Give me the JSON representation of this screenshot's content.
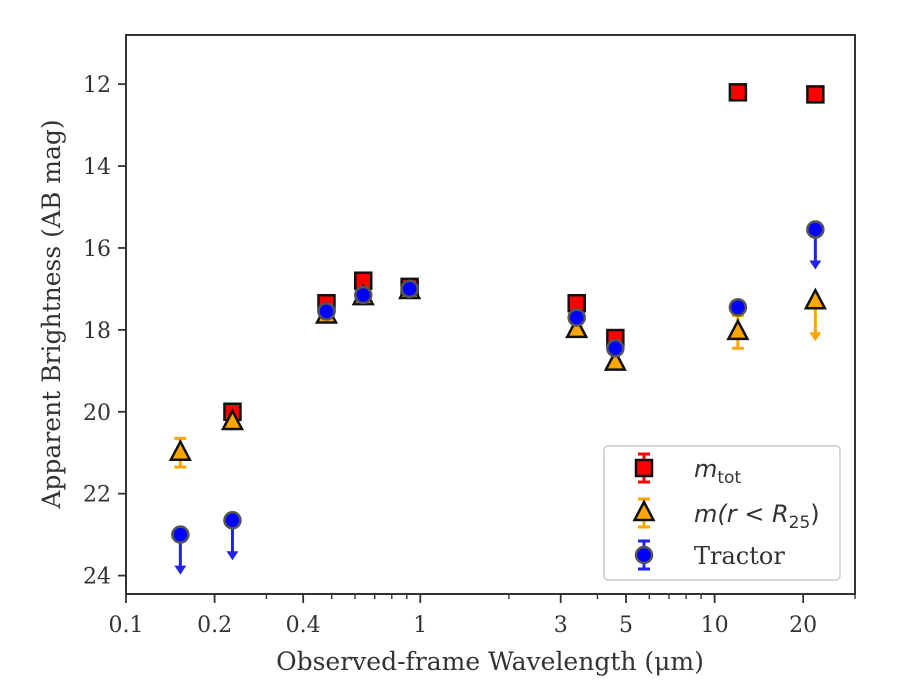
{
  "chart_data": {
    "type": "scatter",
    "title": "",
    "xlabel": "Observed-frame Wavelength (μm)",
    "ylabel": "Apparent Brightness (AB mag)",
    "xscale": "log",
    "xlim": [
      0.1,
      30
    ],
    "ylim": [
      24.45,
      10.8
    ],
    "y_inverted": true,
    "xticks": [
      {
        "value": 0.1,
        "label": "0.1"
      },
      {
        "value": 0.2,
        "label": "0.2"
      },
      {
        "value": 0.4,
        "label": "0.4"
      },
      {
        "value": 1,
        "label": "1"
      },
      {
        "value": 3,
        "label": "3"
      },
      {
        "value": 5,
        "label": "5"
      },
      {
        "value": 10,
        "label": "10"
      },
      {
        "value": 20,
        "label": "20"
      }
    ],
    "yticks": [
      {
        "value": 12,
        "label": "12"
      },
      {
        "value": 14,
        "label": "14"
      },
      {
        "value": 16,
        "label": "16"
      },
      {
        "value": 18,
        "label": "18"
      },
      {
        "value": 20,
        "label": "20"
      },
      {
        "value": 22,
        "label": "22"
      },
      {
        "value": 24,
        "label": "24"
      }
    ],
    "grid": false,
    "legend_position": "lower-right",
    "series": [
      {
        "name": "m_tot",
        "legend_main": "m",
        "legend_sub": "tot",
        "marker": "square",
        "color": "#ff0000",
        "error_color": "#ff0000",
        "points": [
          {
            "x": 0.23,
            "y": 20.0,
            "err": 0.05
          },
          {
            "x": 0.48,
            "y": 17.35,
            "err": 0.05
          },
          {
            "x": 0.64,
            "y": 16.8,
            "err": 0.05
          },
          {
            "x": 0.92,
            "y": 16.95,
            "err": 0.05
          },
          {
            "x": 3.4,
            "y": 17.35,
            "err": 0.05
          },
          {
            "x": 4.6,
            "y": 18.2,
            "err": 0.05
          },
          {
            "x": 12.0,
            "y": 12.2,
            "err": 0.05
          },
          {
            "x": 22.0,
            "y": 12.25,
            "err": 0.05
          }
        ]
      },
      {
        "name": "m(r < R_25)",
        "legend_main": "m(r < R",
        "legend_sub": "25",
        "legend_tail": ")",
        "marker": "triangle",
        "color": "#ffa500",
        "error_color": "#ffa500",
        "points": [
          {
            "x": 0.153,
            "y": 21.0,
            "err": 0.35
          },
          {
            "x": 0.23,
            "y": 20.25,
            "err": 0.05
          },
          {
            "x": 0.48,
            "y": 17.65,
            "err": 0.05
          },
          {
            "x": 0.64,
            "y": 17.2,
            "err": 0.05
          },
          {
            "x": 0.92,
            "y": 17.05,
            "err": 0.05
          },
          {
            "x": 3.4,
            "y": 18.0,
            "err": 0.05
          },
          {
            "x": 4.6,
            "y": 18.8,
            "err": 0.05
          },
          {
            "x": 12.0,
            "y": 18.05,
            "err": 0.4
          },
          {
            "x": 22.0,
            "y": 17.3,
            "upper_limit": true
          }
        ]
      },
      {
        "name": "Tractor",
        "legend_main": "Tractor",
        "marker": "circle",
        "color": "#0000ff",
        "error_color": "#2222ee",
        "points": [
          {
            "x": 0.153,
            "y": 23.0,
            "upper_limit": true
          },
          {
            "x": 0.23,
            "y": 22.65,
            "upper_limit": true
          },
          {
            "x": 0.48,
            "y": 17.55,
            "err": 0.05
          },
          {
            "x": 0.64,
            "y": 17.15,
            "err": 0.05
          },
          {
            "x": 0.92,
            "y": 17.0,
            "err": 0.05
          },
          {
            "x": 3.4,
            "y": 17.7,
            "err": 0.05
          },
          {
            "x": 4.6,
            "y": 18.45,
            "err": 0.05
          },
          {
            "x": 12.0,
            "y": 17.45,
            "err": 0.05
          },
          {
            "x": 22.0,
            "y": 15.55,
            "upper_limit": true
          }
        ]
      }
    ]
  }
}
